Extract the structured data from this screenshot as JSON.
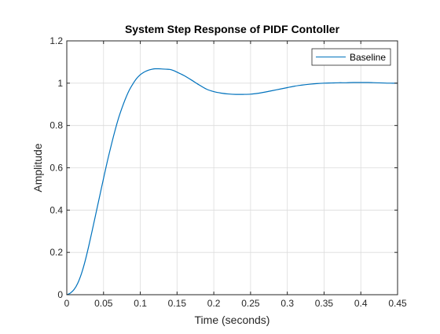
{
  "chart_data": {
    "type": "line",
    "title": "System Step Response of PIDF Contoller",
    "xlabel": "Time (seconds)",
    "ylabel": "Amplitude",
    "xlim": [
      0,
      0.45
    ],
    "ylim": [
      0,
      1.2
    ],
    "xticks": [
      0,
      0.05,
      0.1,
      0.15,
      0.2,
      0.25,
      0.3,
      0.35,
      0.4,
      0.45
    ],
    "xtick_labels": [
      "0",
      "0.05",
      "0.1",
      "0.15",
      "0.2",
      "0.25",
      "0.3",
      "0.35",
      "0.4",
      "0.45"
    ],
    "yticks": [
      0,
      0.2,
      0.4,
      0.6,
      0.8,
      1,
      1.2
    ],
    "ytick_labels": [
      "0",
      "0.2",
      "0.4",
      "0.6",
      "0.8",
      "1",
      "1.2"
    ],
    "grid": true,
    "legend": {
      "placement": "top-right",
      "entries": [
        "Baseline"
      ]
    },
    "series": [
      {
        "name": "Baseline",
        "color": "#0072BD",
        "x": [
          0,
          0.005,
          0.01,
          0.015,
          0.02,
          0.025,
          0.03,
          0.035,
          0.04,
          0.045,
          0.05,
          0.055,
          0.06,
          0.065,
          0.07,
          0.075,
          0.08,
          0.085,
          0.09,
          0.095,
          0.1,
          0.105,
          0.11,
          0.115,
          0.12,
          0.125,
          0.13,
          0.135,
          0.14,
          0.145,
          0.15,
          0.155,
          0.16,
          0.17,
          0.18,
          0.19,
          0.2,
          0.21,
          0.22,
          0.23,
          0.24,
          0.25,
          0.26,
          0.27,
          0.28,
          0.29,
          0.3,
          0.31,
          0.32,
          0.33,
          0.34,
          0.35,
          0.36,
          0.37,
          0.38,
          0.39,
          0.4,
          0.41,
          0.42,
          0.43,
          0.44,
          0.45
        ],
        "values": [
          0,
          0.008,
          0.025,
          0.055,
          0.1,
          0.16,
          0.232,
          0.31,
          0.39,
          0.47,
          0.55,
          0.628,
          0.7,
          0.768,
          0.83,
          0.882,
          0.928,
          0.967,
          0.997,
          1.022,
          1.04,
          1.052,
          1.06,
          1.065,
          1.068,
          1.068,
          1.067,
          1.066,
          1.065,
          1.06,
          1.052,
          1.044,
          1.035,
          1.014,
          0.992,
          0.972,
          0.96,
          0.953,
          0.949,
          0.947,
          0.947,
          0.948,
          0.952,
          0.958,
          0.965,
          0.972,
          0.979,
          0.986,
          0.991,
          0.995,
          0.998,
          1,
          1.001,
          1.002,
          1.002,
          1.003,
          1.003,
          1.003,
          1.002,
          1.001,
          1,
          1
        ]
      }
    ]
  }
}
